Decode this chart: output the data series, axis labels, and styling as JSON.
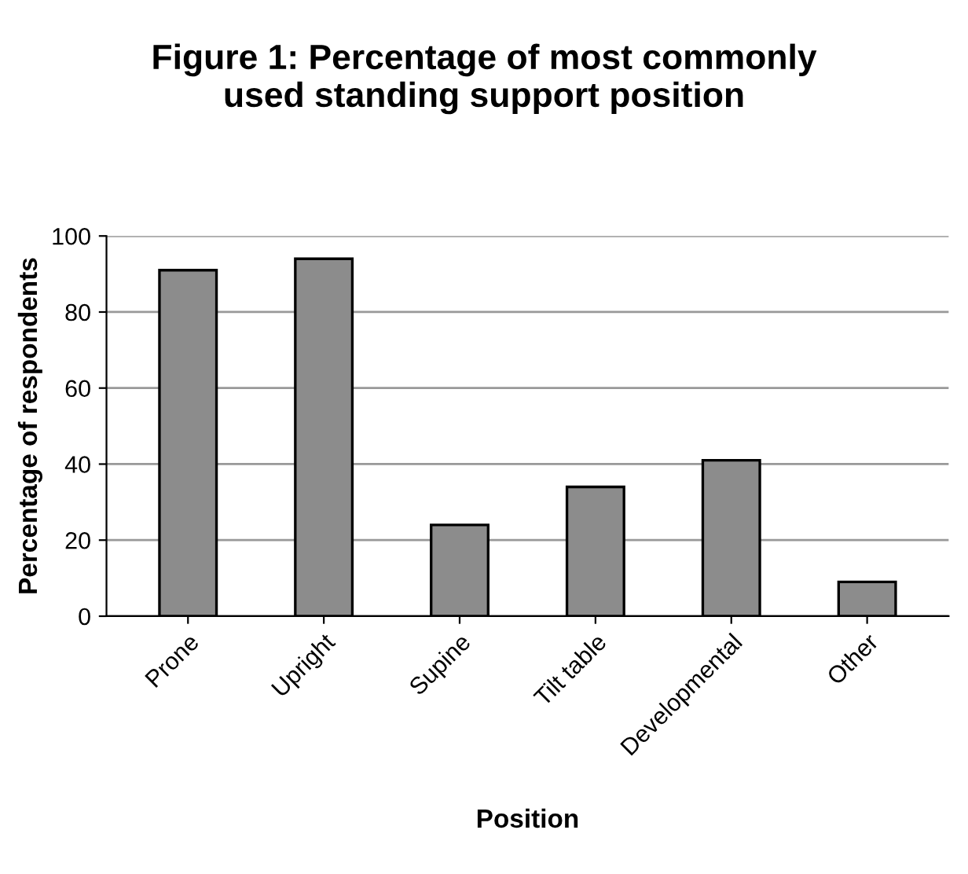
{
  "chart_data": {
    "type": "bar",
    "title": "Figure 1: Percentage of most commonly\nused standing support position",
    "xlabel": "Position",
    "ylabel": "Percentage of respondents",
    "categories": [
      "Prone",
      "Upright",
      "Supine",
      "Tilt table",
      "Developmental",
      "Other"
    ],
    "values": [
      91,
      94,
      24,
      34,
      41,
      9
    ],
    "color": "#8c8c8c",
    "ylim": [
      0,
      100
    ],
    "yticks": [
      0,
      20,
      40,
      60,
      80,
      100
    ],
    "grid": "y"
  }
}
